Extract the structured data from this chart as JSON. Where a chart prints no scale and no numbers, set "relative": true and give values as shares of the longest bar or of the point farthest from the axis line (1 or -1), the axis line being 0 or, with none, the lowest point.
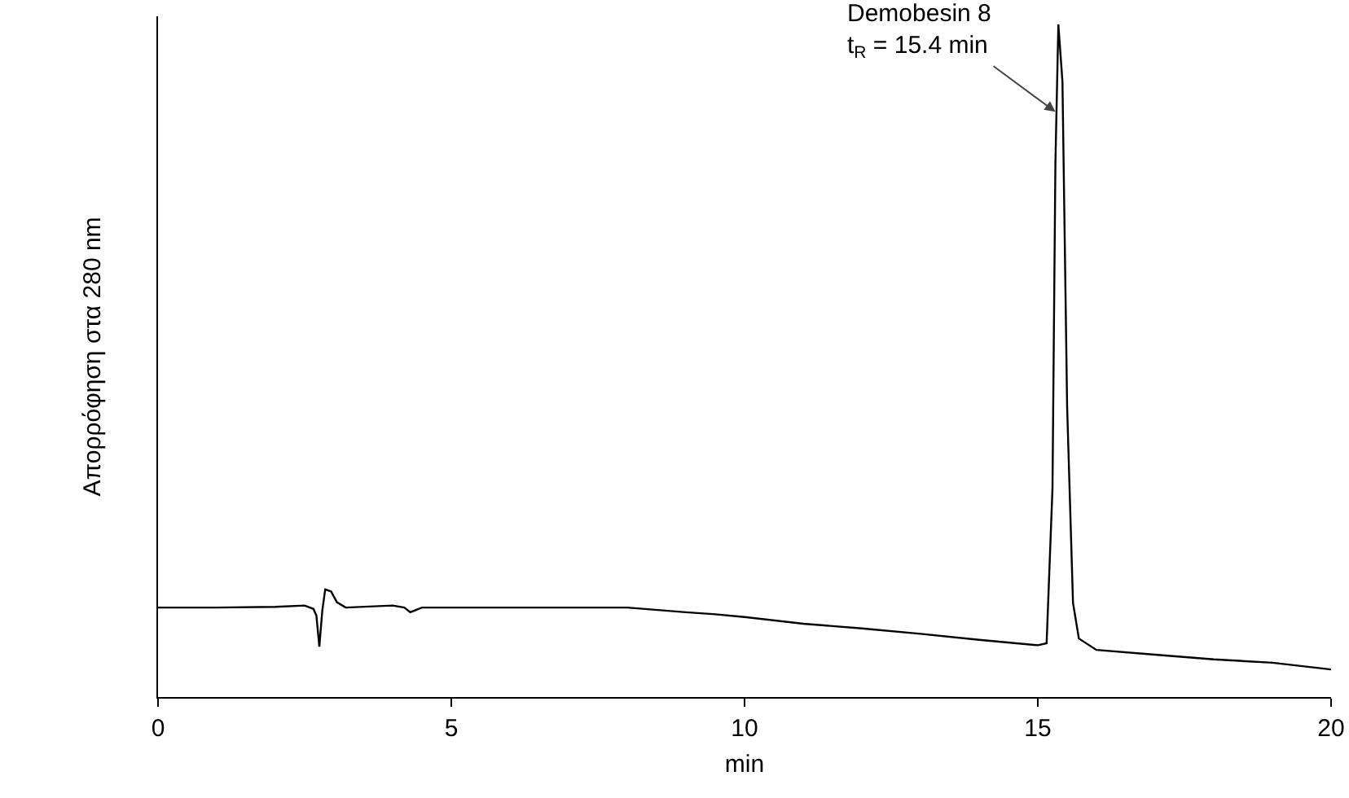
{
  "chart_data": {
    "type": "line",
    "relative": true,
    "xlabel": "min",
    "ylabel": "Απορρόφηση στα 280 nm",
    "xlim": [
      0,
      20
    ],
    "xticks": [
      0,
      5,
      10,
      15,
      20
    ],
    "tick_labels": "x",
    "grid": false,
    "marker": "none",
    "line_style": "solid",
    "annotations": [
      {
        "text": "Demobesin 8\nt$_{R}$ = 15.4 min",
        "x": 15.3,
        "y": 0.87
      }
    ],
    "series": [
      {
        "color": "#000000",
        "x": [
          0,
          1,
          2,
          2.5,
          2.65,
          2.7,
          2.75,
          2.8,
          2.85,
          2.95,
          3.05,
          3.2,
          4,
          4.2,
          4.3,
          4.5,
          6,
          8,
          9,
          9.5,
          10,
          11,
          12,
          13,
          14,
          15,
          15.15,
          15.25,
          15.3,
          15.35,
          15.42,
          15.5,
          15.6,
          15.7,
          16,
          17,
          18,
          19,
          20
        ],
        "values": [
          0.133,
          0.133,
          0.134,
          0.136,
          0.131,
          0.121,
          0.075,
          0.128,
          0.16,
          0.157,
          0.141,
          0.133,
          0.136,
          0.133,
          0.126,
          0.133,
          0.133,
          0.133,
          0.126,
          0.123,
          0.119,
          0.109,
          0.102,
          0.094,
          0.085,
          0.077,
          0.08,
          0.31,
          0.794,
          1.0,
          0.915,
          0.431,
          0.14,
          0.087,
          0.07,
          0.063,
          0.056,
          0.051,
          0.041
        ]
      }
    ]
  }
}
